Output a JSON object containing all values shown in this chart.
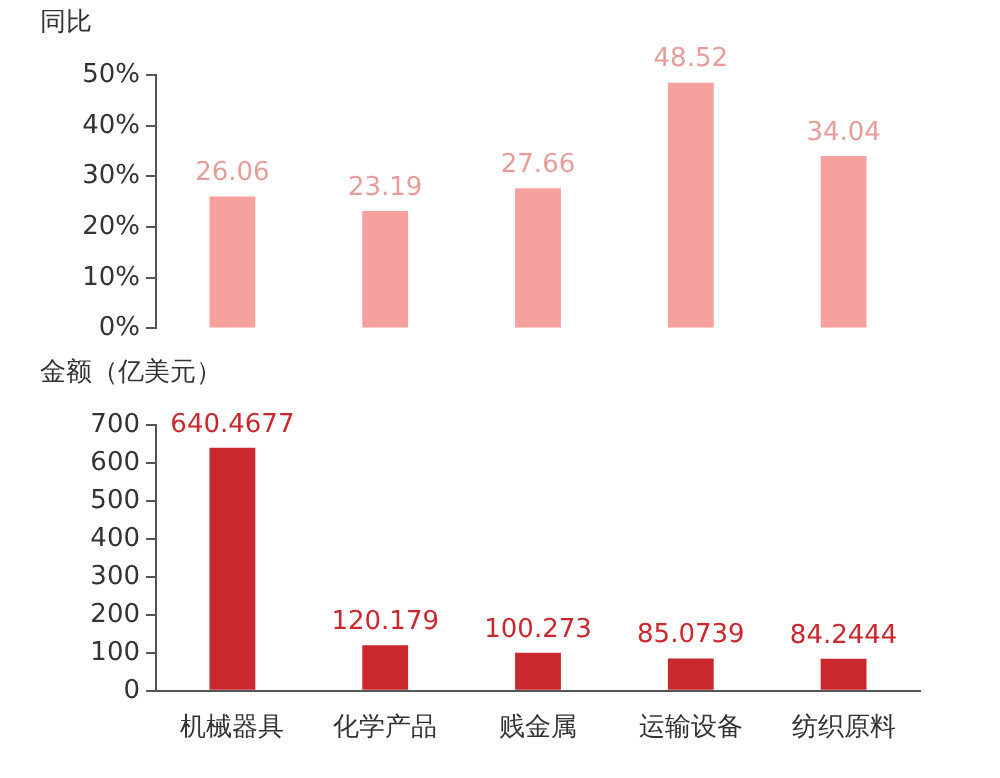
{
  "chart_data": [
    {
      "type": "bar",
      "ylabel": "同比",
      "categories": [
        null,
        null,
        null,
        null,
        null
      ],
      "values": [
        26.06,
        23.19,
        27.66,
        48.52,
        34.04
      ],
      "color": "#f7a19e",
      "ylim": [
        0,
        50
      ],
      "yticks": [
        {
          "value": 0,
          "label": "0%"
        },
        {
          "value": 10,
          "label": "10%"
        },
        {
          "value": 20,
          "label": "20%"
        },
        {
          "value": 30,
          "label": "30%"
        },
        {
          "value": 40,
          "label": "40%"
        },
        {
          "value": 50,
          "label": "50%"
        }
      ],
      "grid": false,
      "legend": false,
      "data_labels": true,
      "tick_labels": "y"
    },
    {
      "type": "bar",
      "ylabel": "金额（亿美元）",
      "categories": [
        "机械器具",
        "化学产品",
        "贱金属",
        "运输设备",
        "纺织原料"
      ],
      "values": [
        640.4677,
        120.179,
        100.273,
        85.0739,
        84.2444
      ],
      "color": "#c8282e",
      "ylim": [
        0,
        700
      ],
      "yticks": [
        0,
        100,
        200,
        300,
        400,
        500,
        600,
        700
      ],
      "grid": false,
      "legend": false,
      "data_labels": true
    }
  ]
}
